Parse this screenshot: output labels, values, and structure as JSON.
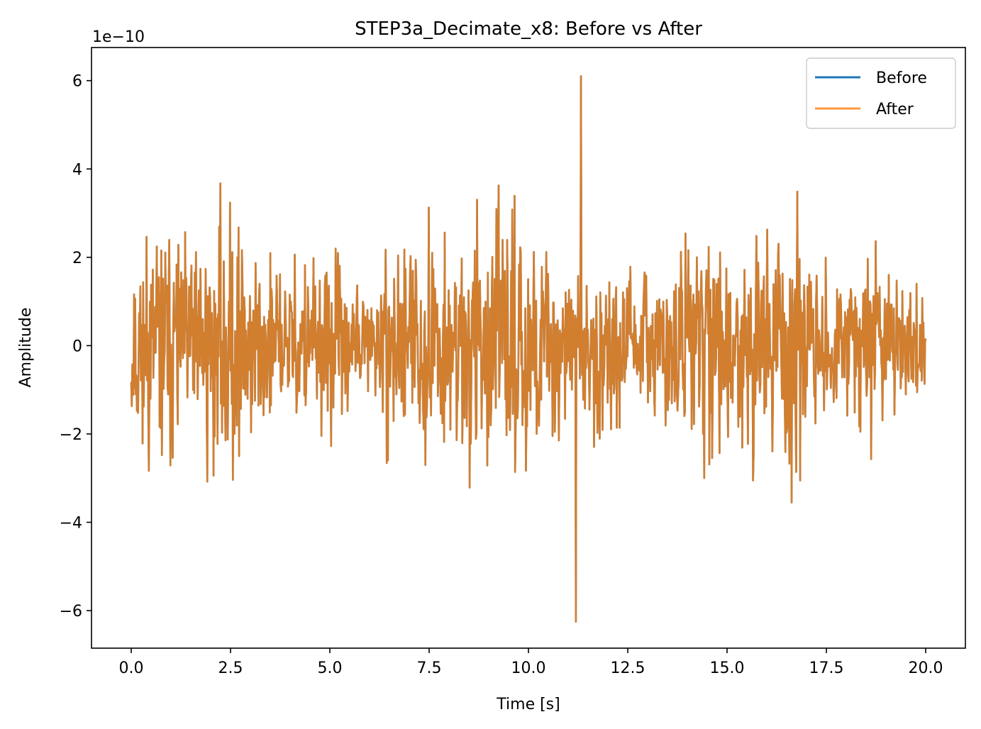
{
  "chart_data": {
    "type": "line",
    "title": "STEP3a_Decimate_x8: Before vs After",
    "xlabel": "Time [s]",
    "ylabel": "Amplitude",
    "y_offset_label": "1e−10",
    "xlim": [
      -1.0,
      21.0
    ],
    "ylim": [
      -6.85,
      6.75
    ],
    "x_ticks": [
      0.0,
      2.5,
      5.0,
      7.5,
      10.0,
      12.5,
      15.0,
      17.5,
      20.0
    ],
    "x_tick_labels": [
      "0.0",
      "2.5",
      "5.0",
      "7.5",
      "10.0",
      "12.5",
      "15.0",
      "17.5",
      "20.0"
    ],
    "y_ticks": [
      -6,
      -4,
      -2,
      0,
      2,
      4,
      6
    ],
    "y_tick_labels": [
      "−6",
      "−4",
      "−2",
      "0",
      "2",
      "4",
      "6"
    ],
    "grid": false,
    "legend_position": "top-right",
    "series": [
      {
        "name": "Before",
        "color": "#1f77b4",
        "x_start": 0.0,
        "x_end": 20.0,
        "samples": 1400,
        "seed": 11,
        "peak_max": 6.1,
        "peak_min": -6.25
      },
      {
        "name": "After",
        "color": "#ff7f0e",
        "opacity": 0.8,
        "x_start": 0.0,
        "x_end": 20.0,
        "samples": 1400,
        "seed": 11,
        "peak_max": 6.1,
        "peak_min": -6.25
      }
    ],
    "overlap_color": "#d17d2f"
  }
}
